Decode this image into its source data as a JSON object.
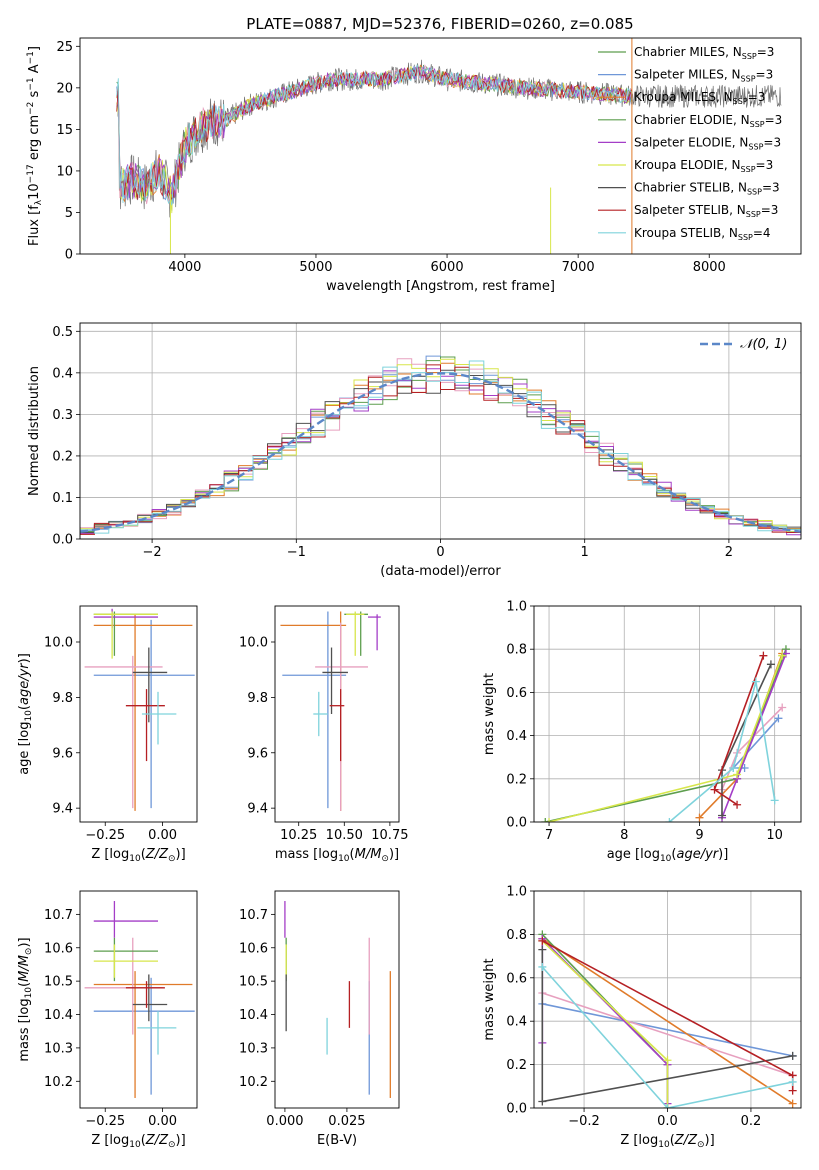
{
  "figure_title": "PLATE=0887, MJD=52376, FIBERID=0260, z=0.085",
  "colors": [
    "#6f97d8",
    "#e07b2a",
    "#e7a0bf",
    "#5d9e4e",
    "#a43ec7",
    "#d7e64b",
    "#505050",
    "#b52024",
    "#7fd3dc"
  ],
  "model_labels": [
    [
      "Chabrier MILES, N",
      "SSP",
      "=3"
    ],
    [
      "Salpeter MILES, N",
      "SSP",
      "=3"
    ],
    [
      "Kroupa MILES, N",
      "SSP",
      "=3"
    ],
    [
      "Chabrier ELODIE, N",
      "SSP",
      "=3"
    ],
    [
      "Salpeter ELODIE, N",
      "SSP",
      "=3"
    ],
    [
      "Kroupa ELODIE, N",
      "SSP",
      "=3"
    ],
    [
      "Chabrier STELIB, N",
      "SSP",
      "=3"
    ],
    [
      "Salpeter STELIB, N",
      "SSP",
      "=3"
    ],
    [
      "Kroupa STELIB, N",
      "SSP",
      "=4"
    ]
  ],
  "legend_colors": [
    "#5d9e4e",
    "#6f97d8",
    "#e07b2a",
    "#5d9e4e",
    "#a43ec7",
    "#d7e64b",
    "#505050",
    "#b52024",
    "#7fd3dc"
  ],
  "chart_data": [
    {
      "id": "spectrum",
      "type": "line",
      "xlabel": "wavelength [Angstrom, rest frame]",
      "ylabel": "Flux [f_λ 10^-17 erg cm^-2 s^-1 A^-1]",
      "xlim": [
        3200,
        8700
      ],
      "ylim": [
        0,
        26
      ],
      "xticks": [
        4000,
        5000,
        6000,
        7000,
        8000
      ],
      "yticks": [
        0,
        5,
        10,
        15,
        20,
        25
      ],
      "grid": false,
      "legend_position": "right",
      "spectrum_anchors": [
        [
          3500,
          8
        ],
        [
          3600,
          9
        ],
        [
          3700,
          8
        ],
        [
          3800,
          10
        ],
        [
          3900,
          7
        ],
        [
          4000,
          13
        ],
        [
          4100,
          15
        ],
        [
          4200,
          16
        ],
        [
          4300,
          16
        ],
        [
          4400,
          17
        ],
        [
          4500,
          18
        ],
        [
          4700,
          19
        ],
        [
          4900,
          20
        ],
        [
          5100,
          21
        ],
        [
          5300,
          21
        ],
        [
          5500,
          21
        ],
        [
          5800,
          22
        ],
        [
          6000,
          21
        ],
        [
          6300,
          20.5
        ],
        [
          6600,
          20
        ],
        [
          7000,
          19.5
        ],
        [
          7400,
          19
        ]
      ],
      "model_span": [
        3480,
        7420
      ],
      "data_span": [
        3480,
        8550
      ]
    },
    {
      "id": "residual_hist",
      "type": "step",
      "xlabel": "(data-model)/error",
      "ylabel": "Normed distribution",
      "xlim": [
        -2.5,
        2.5
      ],
      "ylim": [
        0,
        0.52
      ],
      "xticks": [
        -2,
        -1,
        0,
        1,
        2
      ],
      "yticks": [
        0.0,
        0.1,
        0.2,
        0.3,
        0.4,
        0.5
      ],
      "grid": true,
      "legend": [
        {
          "label": "N(0,1)",
          "style": "dashed",
          "color": "#5b87c8"
        }
      ],
      "bin_width": 0.1
    },
    {
      "id": "age_vs_Z",
      "type": "errorbar",
      "xlabel": "Z [log10(Z/Z⊙)]",
      "ylabel": "age [log10(age/yr)]",
      "xlim": [
        -0.36,
        0.15
      ],
      "ylim": [
        9.35,
        10.13
      ],
      "xticks": [
        -0.25,
        0.0
      ],
      "yticks": [
        9.4,
        9.6,
        9.8,
        10.0
      ],
      "points": [
        {
          "x": -0.05,
          "xlo": -0.3,
          "xhi": 0.14,
          "y": 9.88,
          "ylo": 9.4,
          "yhi": 10.08,
          "c": 0
        },
        {
          "x": -0.12,
          "xlo": -0.3,
          "xhi": 0.13,
          "y": 10.06,
          "ylo": 9.39,
          "yhi": 10.1,
          "c": 1
        },
        {
          "x": -0.13,
          "xlo": -0.34,
          "xhi": 0.0,
          "y": 9.91,
          "ylo": 9.4,
          "yhi": 9.95,
          "c": 2
        },
        {
          "x": -0.21,
          "xlo": -0.3,
          "xhi": -0.02,
          "y": 10.1,
          "ylo": 9.95,
          "yhi": 10.11,
          "c": 3
        },
        {
          "x": -0.22,
          "xlo": -0.3,
          "xhi": -0.02,
          "y": 10.09,
          "ylo": 10.05,
          "yhi": 10.12,
          "c": 4
        },
        {
          "x": -0.22,
          "xlo": -0.3,
          "xhi": -0.02,
          "y": 10.1,
          "ylo": 9.94,
          "yhi": 10.11,
          "c": 5
        },
        {
          "x": -0.06,
          "xlo": -0.13,
          "xhi": 0.02,
          "y": 9.89,
          "ylo": 9.71,
          "yhi": 9.98,
          "c": 6
        },
        {
          "x": -0.07,
          "xlo": -0.16,
          "xhi": 0.01,
          "y": 9.77,
          "ylo": 9.57,
          "yhi": 9.83,
          "c": 7
        },
        {
          "x": -0.02,
          "xlo": -0.09,
          "xhi": 0.06,
          "y": 9.74,
          "ylo": 9.63,
          "yhi": 9.82,
          "c": 8
        }
      ]
    },
    {
      "id": "age_vs_mass",
      "type": "errorbar",
      "xlabel": "mass [log10(M/M⊙)]",
      "ylabel": "",
      "xlim": [
        10.12,
        10.8
      ],
      "ylim": [
        9.35,
        10.13
      ],
      "xticks": [
        10.25,
        10.5,
        10.75
      ],
      "yticks": [
        9.4,
        9.6,
        9.8,
        10.0
      ],
      "points": [
        {
          "x": 10.41,
          "xlo": 10.16,
          "xhi": 10.51,
          "y": 9.88,
          "ylo": 9.4,
          "yhi": 10.11,
          "c": 0
        },
        {
          "x": 10.48,
          "xlo": 10.15,
          "xhi": 10.51,
          "y": 10.06,
          "ylo": 9.39,
          "yhi": 10.11,
          "c": 1
        },
        {
          "x": 10.48,
          "xlo": 10.34,
          "xhi": 10.63,
          "y": 9.91,
          "ylo": 9.39,
          "yhi": 10.07,
          "c": 2
        },
        {
          "x": 10.59,
          "xlo": 10.5,
          "xhi": 10.63,
          "y": 10.1,
          "ylo": 9.95,
          "yhi": 10.11,
          "c": 3
        },
        {
          "x": 10.68,
          "xlo": 10.63,
          "xhi": 10.7,
          "y": 10.09,
          "ylo": 9.97,
          "yhi": 10.1,
          "c": 4
        },
        {
          "x": 10.56,
          "xlo": 10.51,
          "xhi": 10.61,
          "y": 10.1,
          "ylo": 9.95,
          "yhi": 10.11,
          "c": 5
        },
        {
          "x": 10.43,
          "xlo": 10.38,
          "xhi": 10.52,
          "y": 9.89,
          "ylo": 9.74,
          "yhi": 9.98,
          "c": 6
        },
        {
          "x": 10.48,
          "xlo": 10.42,
          "xhi": 10.5,
          "y": 9.77,
          "ylo": 9.57,
          "yhi": 9.83,
          "c": 7
        },
        {
          "x": 10.36,
          "xlo": 10.33,
          "xhi": 10.41,
          "y": 9.74,
          "ylo": 9.66,
          "yhi": 9.82,
          "c": 8
        }
      ]
    },
    {
      "id": "massweight_vs_age",
      "type": "line",
      "xlabel": "age [log10(age/yr)]",
      "ylabel": "mass weight",
      "xlim": [
        6.8,
        10.35
      ],
      "ylim": [
        0,
        1.0
      ],
      "xticks": [
        7,
        8,
        9,
        10
      ],
      "yticks": [
        0.0,
        0.2,
        0.4,
        0.6,
        0.8,
        1.0
      ],
      "grid": true,
      "series": [
        {
          "c": 0,
          "points": [
            [
              9.6,
              0.25
            ],
            [
              9.45,
              0.25
            ],
            [
              10.05,
              0.48
            ]
          ]
        },
        {
          "c": 1,
          "points": [
            [
              9.0,
              0.02
            ],
            [
              9.5,
              0.2
            ],
            [
              10.1,
              0.78
            ]
          ]
        },
        {
          "c": 2,
          "points": [
            [
              9.3,
              0.15
            ],
            [
              9.5,
              0.32
            ],
            [
              10.1,
              0.53
            ]
          ]
        },
        {
          "c": 3,
          "points": [
            [
              6.95,
              0.0
            ],
            [
              9.5,
              0.2
            ],
            [
              10.15,
              0.8
            ]
          ]
        },
        {
          "c": 4,
          "points": [
            [
              9.3,
              0.02
            ],
            [
              9.5,
              0.2
            ],
            [
              10.15,
              0.78
            ]
          ]
        },
        {
          "c": 5,
          "points": [
            [
              7.0,
              0.0
            ],
            [
              9.5,
              0.22
            ],
            [
              10.1,
              0.77
            ]
          ]
        },
        {
          "c": 6,
          "points": [
            [
              9.3,
              0.03
            ],
            [
              9.3,
              0.24
            ],
            [
              9.95,
              0.73
            ]
          ]
        },
        {
          "c": 7,
          "points": [
            [
              9.5,
              0.08
            ],
            [
              9.2,
              0.15
            ],
            [
              9.85,
              0.77
            ]
          ]
        },
        {
          "c": 8,
          "points": [
            [
              8.6,
              0.0
            ],
            [
              9.45,
              0.25
            ],
            [
              9.75,
              0.65
            ],
            [
              10.0,
              0.1
            ]
          ]
        }
      ]
    },
    {
      "id": "mass_vs_Z",
      "type": "errorbar",
      "xlabel": "Z [log10(Z/Z⊙)]",
      "ylabel": "mass [log10(M/M⊙)]",
      "xlim": [
        -0.36,
        0.15
      ],
      "ylim": [
        10.12,
        10.77
      ],
      "xticks": [
        -0.25,
        0.0
      ],
      "yticks": [
        10.2,
        10.3,
        10.4,
        10.5,
        10.6,
        10.7
      ],
      "points": [
        {
          "x": -0.05,
          "xlo": -0.3,
          "xhi": 0.14,
          "y": 10.41,
          "ylo": 10.16,
          "yhi": 10.51,
          "c": 0
        },
        {
          "x": -0.12,
          "xlo": -0.3,
          "xhi": 0.13,
          "y": 10.49,
          "ylo": 10.15,
          "yhi": 10.53,
          "c": 1
        },
        {
          "x": -0.13,
          "xlo": -0.34,
          "xhi": 0.0,
          "y": 10.48,
          "ylo": 10.34,
          "yhi": 10.63,
          "c": 2
        },
        {
          "x": -0.21,
          "xlo": -0.3,
          "xhi": -0.02,
          "y": 10.59,
          "ylo": 10.5,
          "yhi": 10.63,
          "c": 3
        },
        {
          "x": -0.21,
          "xlo": -0.3,
          "xhi": -0.02,
          "y": 10.68,
          "ylo": 10.63,
          "yhi": 10.74,
          "c": 4
        },
        {
          "x": -0.21,
          "xlo": -0.3,
          "xhi": -0.02,
          "y": 10.56,
          "ylo": 10.51,
          "yhi": 10.61,
          "c": 5
        },
        {
          "x": -0.06,
          "xlo": -0.13,
          "xhi": 0.02,
          "y": 10.43,
          "ylo": 10.38,
          "yhi": 10.52,
          "c": 6
        },
        {
          "x": -0.07,
          "xlo": -0.16,
          "xhi": 0.01,
          "y": 10.48,
          "ylo": 10.42,
          "yhi": 10.5,
          "c": 7
        },
        {
          "x": -0.02,
          "xlo": -0.11,
          "xhi": 0.06,
          "y": 10.36,
          "ylo": 10.28,
          "yhi": 10.41,
          "c": 8
        }
      ]
    },
    {
      "id": "mass_vs_EBV",
      "type": "errorbar",
      "xlabel": "E(B-V)",
      "ylabel": "",
      "xlim": [
        -0.004,
        0.046
      ],
      "ylim": [
        10.12,
        10.77
      ],
      "xticks": [
        0.0,
        0.025
      ],
      "yticks": [
        10.2,
        10.3,
        10.4,
        10.5,
        10.6,
        10.7
      ],
      "points": [
        {
          "x": 0.034,
          "y": 10.41,
          "ylo": 10.16,
          "yhi": 10.5,
          "c": 0
        },
        {
          "x": 0.0425,
          "y": 10.49,
          "ylo": 10.15,
          "yhi": 10.53,
          "c": 1
        },
        {
          "x": 0.034,
          "y": 10.48,
          "ylo": 10.34,
          "yhi": 10.63,
          "c": 2
        },
        {
          "x": 0.0005,
          "y": 10.59,
          "ylo": 10.5,
          "yhi": 10.63,
          "c": 3
        },
        {
          "x": 0.0,
          "y": 10.68,
          "ylo": 10.63,
          "yhi": 10.74,
          "c": 4
        },
        {
          "x": 0.0005,
          "y": 10.56,
          "ylo": 10.51,
          "yhi": 10.61,
          "c": 5
        },
        {
          "x": 0.0005,
          "y": 10.43,
          "ylo": 10.35,
          "yhi": 10.52,
          "c": 6
        },
        {
          "x": 0.026,
          "y": 10.43,
          "ylo": 10.36,
          "yhi": 10.5,
          "c": 7
        },
        {
          "x": 0.017,
          "y": 10.33,
          "ylo": 10.28,
          "yhi": 10.39,
          "c": 8
        }
      ]
    },
    {
      "id": "massweight_vs_Z",
      "type": "line",
      "xlabel": "Z [log10(Z/Z⊙)]",
      "ylabel": "mass weight",
      "xlim": [
        -0.32,
        0.32
      ],
      "ylim": [
        0,
        1.0
      ],
      "xticks": [
        -0.2,
        0.0,
        0.2
      ],
      "yticks": [
        0.0,
        0.2,
        0.4,
        0.6,
        0.8,
        1.0
      ],
      "grid": true,
      "series": [
        {
          "c": 0,
          "points": [
            [
              -0.3,
              0.48
            ],
            [
              0.3,
              0.24
            ]
          ]
        },
        {
          "c": 1,
          "points": [
            [
              -0.3,
              0.78
            ],
            [
              0.3,
              0.02
            ]
          ]
        },
        {
          "c": 2,
          "points": [
            [
              -0.3,
              0.53
            ],
            [
              0.3,
              0.15
            ]
          ]
        },
        {
          "c": 3,
          "points": [
            [
              -0.3,
              0.8
            ],
            [
              0.0,
              0.2
            ],
            [
              0.0,
              0.0
            ]
          ]
        },
        {
          "c": 4,
          "points": [
            [
              -0.3,
              0.3
            ],
            [
              -0.3,
              0.78
            ],
            [
              0.0,
              0.2
            ],
            [
              0.0,
              0.02
            ]
          ]
        },
        {
          "c": 5,
          "points": [
            [
              -0.3,
              0.77
            ],
            [
              0.0,
              0.22
            ],
            [
              0.0,
              0.0
            ]
          ]
        },
        {
          "c": 6,
          "points": [
            [
              -0.3,
              0.73
            ],
            [
              -0.3,
              0.03
            ],
            [
              0.3,
              0.24
            ]
          ]
        },
        {
          "c": 7,
          "points": [
            [
              -0.3,
              0.77
            ],
            [
              0.3,
              0.15
            ],
            [
              0.3,
              0.08
            ]
          ]
        },
        {
          "c": 8,
          "points": [
            [
              -0.3,
              0.65
            ],
            [
              0.0,
              0.0
            ],
            [
              0.3,
              0.12
            ]
          ]
        }
      ]
    }
  ]
}
